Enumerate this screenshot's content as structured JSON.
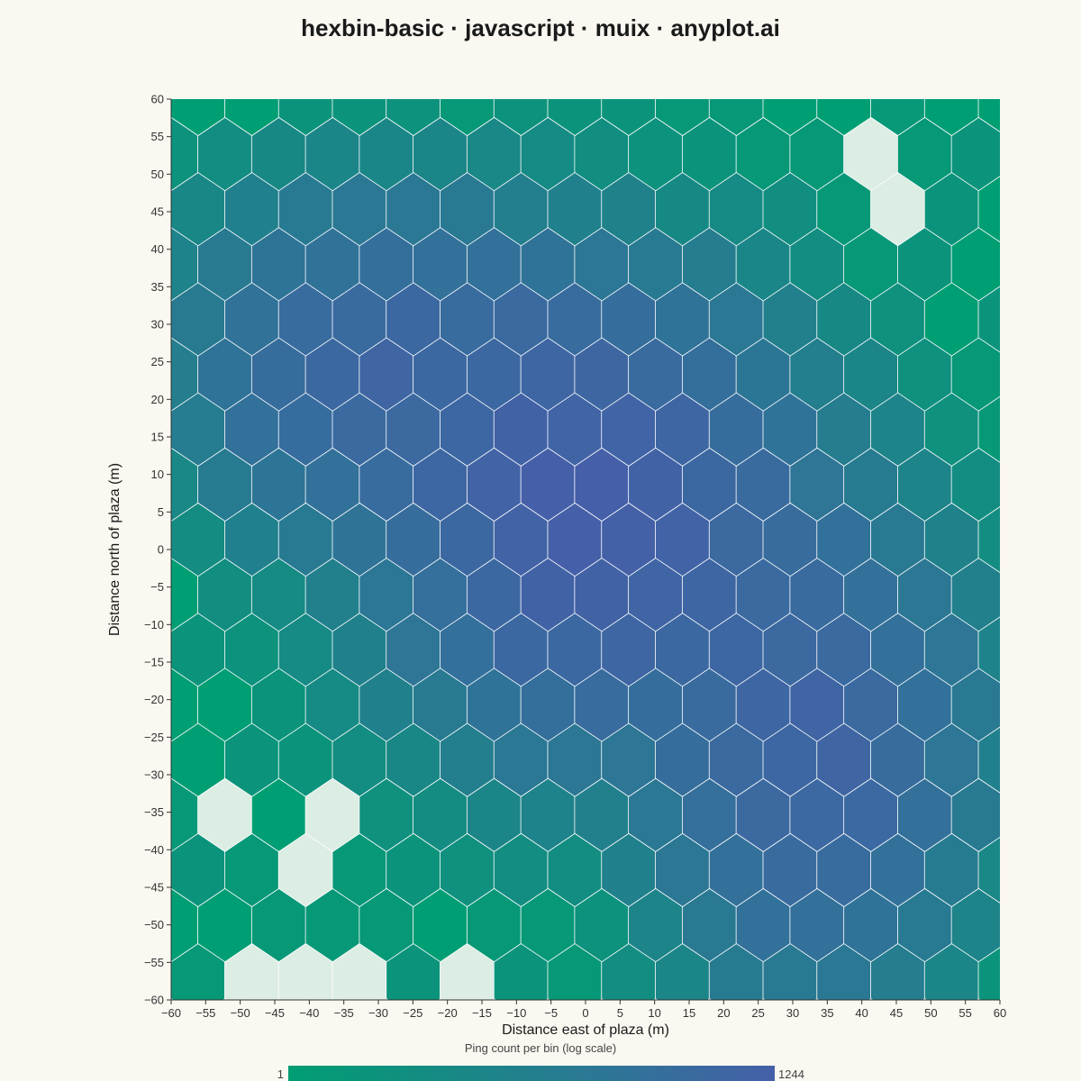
{
  "chart_data": {
    "type": "hexbin",
    "title": "hexbin-basic · javascript · muix · anyplot.ai",
    "xlabel": "Distance east of plaza (m)",
    "ylabel": "Distance north of plaza (m)",
    "xlim": [
      -60,
      60
    ],
    "ylim": [
      -60,
      60
    ],
    "x_ticks": [
      -60,
      -55,
      -50,
      -45,
      -40,
      -35,
      -30,
      -25,
      -20,
      -15,
      -10,
      -5,
      0,
      5,
      10,
      15,
      20,
      25,
      30,
      35,
      40,
      45,
      50,
      55,
      60
    ],
    "y_ticks": [
      -60,
      -55,
      -50,
      -45,
      -40,
      -35,
      -30,
      -25,
      -20,
      -15,
      -10,
      -5,
      0,
      5,
      10,
      15,
      20,
      25,
      30,
      35,
      40,
      45,
      50,
      55,
      60
    ],
    "x_tick_labels": [
      "−60",
      "−55",
      "−50",
      "−45",
      "−40",
      "−35",
      "−30",
      "−25",
      "−20",
      "−15",
      "−10",
      "−5",
      "0",
      "5",
      "10",
      "15",
      "20",
      "25",
      "30",
      "35",
      "40",
      "45",
      "50",
      "55",
      "60"
    ],
    "y_tick_labels": [
      "−60",
      "−55",
      "−50",
      "−45",
      "−40",
      "−35",
      "−30",
      "−25",
      "−20",
      "−15",
      "−10",
      "−5",
      "0",
      "5",
      "10",
      "15",
      "20",
      "25",
      "30",
      "35",
      "40",
      "45",
      "50",
      "55",
      "60"
    ],
    "hex_size": 4.5,
    "color_scale": "log",
    "color_range": [
      "#009E73",
      "#4560A8"
    ],
    "empty_color": "#DCEDE3",
    "hex_edge_color": "#FFFFFF",
    "grid": false,
    "colorbar": {
      "label": "Ping count per bin (log scale)",
      "min_label": "1",
      "max_label": "1244",
      "min": 1,
      "max": 1244
    },
    "clusters": [
      {
        "x": 2,
        "y": 4,
        "sx": 14,
        "sy": 14,
        "peak": 1244
      },
      {
        "x": -28,
        "y": 24,
        "sx": 14,
        "sy": 11,
        "peak": 520
      },
      {
        "x": 33,
        "y": -26,
        "sx": 11,
        "sy": 15,
        "peak": 650
      }
    ]
  }
}
